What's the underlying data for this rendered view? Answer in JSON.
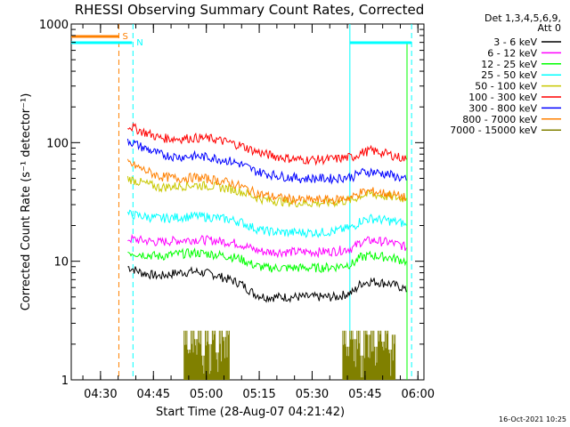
{
  "chart_data": {
    "type": "line",
    "title": "RHESSI Observing Summary Count Rates, Corrected",
    "xlabel": "Start Time (28-Aug-07 04:21:42)",
    "ylabel": "Corrected Count Rate (s⁻¹ detector⁻¹)",
    "yscale": "log",
    "ylim": [
      1,
      1000
    ],
    "xlim": [
      0,
      100
    ],
    "y_ticks": [
      {
        "value": 1,
        "label": "1"
      },
      {
        "value": 10,
        "label": "10"
      },
      {
        "value": 100,
        "label": "100"
      },
      {
        "value": 1000,
        "label": "1000"
      }
    ],
    "x_ticks": [
      {
        "value": 8.3,
        "label": "04:30"
      },
      {
        "value": 23.3,
        "label": "04:45"
      },
      {
        "value": 38.3,
        "label": "05:00"
      },
      {
        "value": 53.3,
        "label": "05:15"
      },
      {
        "value": 68.3,
        "label": "05:30"
      },
      {
        "value": 83.3,
        "label": "05:45"
      },
      {
        "value": 98.3,
        "label": "06:00"
      }
    ],
    "legend_header": [
      "Det 1,3,4,5,6,9,",
      "Att 0"
    ],
    "legend_position": "right",
    "series": [
      {
        "name": "3 - 6 keV",
        "color": "#000000",
        "x": [
          16,
          20,
          25,
          30,
          35,
          40,
          45,
          48,
          52,
          55,
          60,
          65,
          70,
          75,
          80,
          82,
          85,
          90,
          94,
          95
        ],
        "y": [
          9,
          8,
          7.5,
          8,
          8.2,
          7.8,
          7,
          6.5,
          5.3,
          5,
          5,
          5,
          5,
          5,
          5.5,
          6.5,
          6.8,
          6.5,
          6,
          5.5
        ]
      },
      {
        "name": "6 - 12 keV",
        "color": "#ff00ff",
        "x": [
          16,
          20,
          25,
          30,
          35,
          40,
          45,
          48,
          52,
          55,
          60,
          65,
          70,
          75,
          80,
          82,
          85,
          90,
          94,
          95
        ],
        "y": [
          15.5,
          15,
          14.5,
          15,
          15.3,
          15,
          14.5,
          14,
          12.5,
          12,
          12,
          12,
          12,
          12.2,
          13,
          14.5,
          15,
          14.5,
          13.5,
          13
        ]
      },
      {
        "name": "12 - 25 keV",
        "color": "#00ff00",
        "x": [
          16,
          20,
          25,
          30,
          35,
          40,
          45,
          48,
          52,
          55,
          60,
          65,
          70,
          75,
          80,
          82,
          85,
          90,
          94,
          95
        ],
        "y": [
          12,
          11.5,
          11,
          11.5,
          11.8,
          11.5,
          11,
          10.5,
          9.2,
          8.8,
          8.8,
          8.8,
          8.8,
          9,
          9.6,
          10.8,
          11.2,
          10.8,
          10.2,
          10
        ]
      },
      {
        "name": "25 - 50 keV",
        "color": "#00ffff",
        "x": [
          16,
          20,
          25,
          30,
          35,
          40,
          45,
          48,
          52,
          55,
          60,
          65,
          70,
          75,
          80,
          82,
          85,
          90,
          94,
          95
        ],
        "y": [
          25,
          24,
          23,
          23.5,
          24,
          23.5,
          22.5,
          21.5,
          19,
          18,
          17.5,
          17.5,
          17.5,
          18,
          19.5,
          22,
          23,
          22,
          21,
          20
        ]
      },
      {
        "name": "50 - 100 keV",
        "color": "#c8c800",
        "x": [
          16,
          20,
          25,
          30,
          35,
          40,
          45,
          48,
          52,
          55,
          60,
          65,
          70,
          75,
          80,
          82,
          85,
          90,
          94,
          95
        ],
        "y": [
          50,
          46,
          42,
          43,
          44,
          43,
          41,
          39,
          35,
          33,
          32,
          31,
          31,
          31.5,
          33,
          36,
          37,
          35,
          34,
          33
        ]
      },
      {
        "name": "100 - 300 keV",
        "color": "#ff0000",
        "x": [
          16,
          20,
          25,
          30,
          35,
          40,
          45,
          48,
          52,
          55,
          60,
          65,
          70,
          75,
          80,
          82,
          85,
          90,
          94,
          95
        ],
        "y": [
          140,
          125,
          110,
          108,
          110,
          108,
          100,
          95,
          85,
          80,
          75,
          72,
          72,
          73,
          76,
          82,
          86,
          80,
          74,
          72
        ]
      },
      {
        "name": "300 - 800 keV",
        "color": "#0000ff",
        "x": [
          16,
          20,
          25,
          30,
          35,
          40,
          45,
          48,
          52,
          55,
          60,
          65,
          70,
          75,
          80,
          82,
          85,
          90,
          94,
          95
        ],
        "y": [
          105,
          92,
          80,
          76,
          77,
          75,
          70,
          66,
          58,
          55,
          52,
          50,
          50,
          50,
          52,
          56,
          57,
          54,
          50,
          48
        ]
      },
      {
        "name": "800 - 7000 keV",
        "color": "#ff8000",
        "x": [
          16,
          20,
          25,
          30,
          35,
          40,
          45,
          48,
          52,
          55,
          60,
          65,
          70,
          75,
          80,
          82,
          85,
          90,
          94,
          95
        ],
        "y": [
          68,
          60,
          52,
          50,
          51,
          49,
          46,
          43,
          38,
          36,
          34,
          33,
          33,
          33,
          35,
          38,
          39,
          37,
          35,
          34
        ]
      },
      {
        "name": "7000 - 15000 keV",
        "color": "#808000",
        "x": [
          32,
          33,
          34,
          35,
          36,
          37,
          38,
          39,
          40,
          41,
          42,
          43,
          44,
          77,
          78,
          79,
          80,
          81,
          82,
          83,
          84,
          85,
          86,
          87,
          88,
          89,
          90,
          91
        ],
        "y": [
          2.6,
          1.8,
          2.6,
          2.2,
          2.6,
          1.6,
          2.6,
          2.0,
          2.6,
          1.7,
          2.6,
          2.3,
          2.6,
          2.6,
          1.9,
          2.6,
          2.2,
          2.6,
          1.6,
          2.6,
          2.4,
          2.6,
          1.9,
          2.6,
          2.1,
          2.6,
          1.8,
          2.4
        ]
      }
    ],
    "annotations": [
      {
        "label": "S",
        "color": "#ff8000"
      },
      {
        "label": "N",
        "color": "#00ffff"
      }
    ],
    "timestamp": "16-Oct-2021 10:25"
  }
}
